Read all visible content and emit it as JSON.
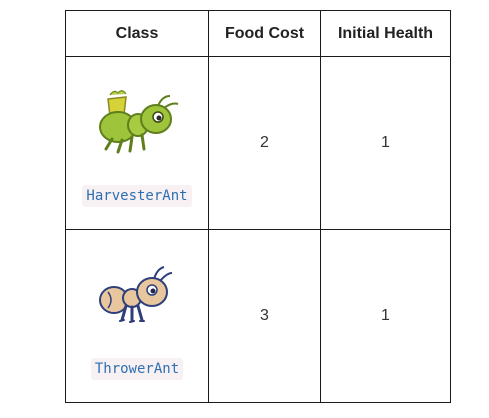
{
  "table": {
    "headers": {
      "class": "Class",
      "food_cost": "Food Cost",
      "initial_health": "Initial Health"
    },
    "rows": [
      {
        "class_name": "HarvesterAnt",
        "icon": "harvester-ant-icon",
        "food_cost": "2",
        "initial_health": "1"
      },
      {
        "class_name": "ThrowerAnt",
        "icon": "thrower-ant-icon",
        "food_cost": "3",
        "initial_health": "1"
      }
    ]
  },
  "colors": {
    "harvester_body": "#9dc43a",
    "thrower_body": "#e8c79e",
    "thrower_outline": "#2e3f7a",
    "code_text": "#2f6fb0"
  }
}
